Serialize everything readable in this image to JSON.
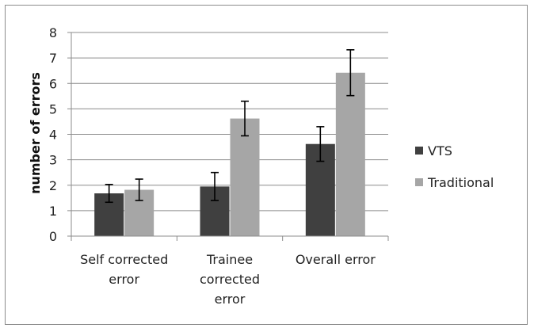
{
  "chart_data": {
    "type": "bar",
    "title": "",
    "xlabel": "",
    "ylabel": "number of errors",
    "ylim": [
      0,
      8
    ],
    "yticks": [
      0,
      1,
      2,
      3,
      4,
      5,
      6,
      7,
      8
    ],
    "grid": true,
    "legend_position": "right",
    "categories": [
      "Self corrected error",
      "Trainee corrected error",
      "Overall error"
    ],
    "category_lines": [
      [
        "Self corrected",
        "error"
      ],
      [
        "Trainee",
        "corrected",
        "error"
      ],
      [
        "Overall error"
      ]
    ],
    "series": [
      {
        "name": "VTS",
        "color": "#404040",
        "values": [
          1.68,
          1.95,
          3.62
        ],
        "error": [
          0.35,
          0.55,
          0.68
        ]
      },
      {
        "name": "Traditional",
        "color": "#a6a6a6",
        "values": [
          1.82,
          4.62,
          6.42
        ],
        "error": [
          0.42,
          0.68,
          0.9
        ]
      }
    ]
  }
}
